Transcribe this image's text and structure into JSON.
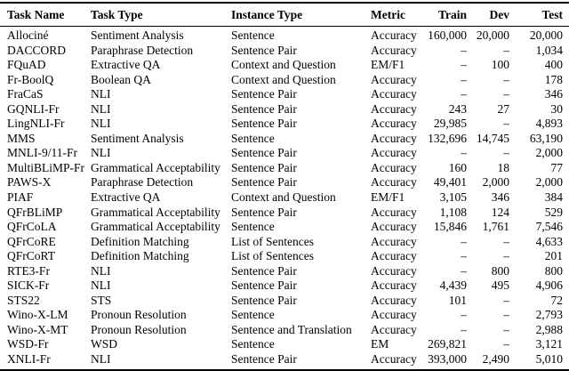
{
  "table": {
    "columns": [
      {
        "label": "Task Name",
        "align": "left",
        "key": "task-name"
      },
      {
        "label": "Task Type",
        "align": "left",
        "key": "task-type"
      },
      {
        "label": "Instance Type",
        "align": "left",
        "key": "instance-type"
      },
      {
        "label": "Metric",
        "align": "left",
        "key": "metric"
      },
      {
        "label": "Train",
        "align": "right",
        "key": "train"
      },
      {
        "label": "Dev",
        "align": "right",
        "key": "dev"
      },
      {
        "label": "Test",
        "align": "right",
        "key": "test"
      }
    ],
    "rows": [
      [
        "Allociné",
        "Sentiment Analysis",
        "Sentence",
        "Accuracy",
        "160,000",
        "20,000",
        "20,000"
      ],
      [
        "DACCORD",
        "Paraphrase Detection",
        "Sentence Pair",
        "Accuracy",
        "–",
        "–",
        "1,034"
      ],
      [
        "FQuAD",
        "Extractive QA",
        "Context and Question",
        "EM/F1",
        "–",
        "100",
        "400"
      ],
      [
        "Fr-BoolQ",
        "Boolean QA",
        "Context and Question",
        "Accuracy",
        "–",
        "–",
        "178"
      ],
      [
        "FraCaS",
        "NLI",
        "Sentence Pair",
        "Accuracy",
        "–",
        "–",
        "346"
      ],
      [
        "GQNLI-Fr",
        "NLI",
        "Sentence Pair",
        "Accuracy",
        "243",
        "27",
        "30"
      ],
      [
        "LingNLI-Fr",
        "NLI",
        "Sentence Pair",
        "Accuracy",
        "29,985",
        "–",
        "4,893"
      ],
      [
        "MMS",
        "Sentiment Analysis",
        "Sentence",
        "Accuracy",
        "132,696",
        "14,745",
        "63,190"
      ],
      [
        "MNLI-9/11-Fr",
        "NLI",
        "Sentence Pair",
        "Accuracy",
        "–",
        "–",
        "2,000"
      ],
      [
        "MultiBLiMP-Fr",
        "Grammatical Acceptability",
        "Sentence Pair",
        "Accuracy",
        "160",
        "18",
        "77"
      ],
      [
        "PAWS-X",
        "Paraphrase Detection",
        "Sentence Pair",
        "Accuracy",
        "49,401",
        "2,000",
        "2,000"
      ],
      [
        "PIAF",
        "Extractive QA",
        "Context and Question",
        "EM/F1",
        "3,105",
        "346",
        "384"
      ],
      [
        "QFrBLiMP",
        "Grammatical Acceptability",
        "Sentence Pair",
        "Accuracy",
        "1,108",
        "124",
        "529"
      ],
      [
        "QFrCoLA",
        "Grammatical Acceptability",
        "Sentence",
        "Accuracy",
        "15,846",
        "1,761",
        "7,546"
      ],
      [
        "QFrCoRE",
        "Definition Matching",
        "List of Sentences",
        "Accuracy",
        "–",
        "–",
        "4,633"
      ],
      [
        "QFrCoRT",
        "Definition Matching",
        "List of Sentences",
        "Accuracy",
        "–",
        "–",
        "201"
      ],
      [
        "RTE3-Fr",
        "NLI",
        "Sentence Pair",
        "Accuracy",
        "–",
        "800",
        "800"
      ],
      [
        "SICK-Fr",
        "NLI",
        "Sentence Pair",
        "Accuracy",
        "4,439",
        "495",
        "4,906"
      ],
      [
        "STS22",
        "STS",
        "Sentence Pair",
        "Accuracy",
        "101",
        "–",
        "72"
      ],
      [
        "Wino-X-LM",
        "Pronoun Resolution",
        "Sentence",
        "Accuracy",
        "–",
        "–",
        "2,793"
      ],
      [
        "Wino-X-MT",
        "Pronoun Resolution",
        "Sentence and Translation",
        "Accuracy",
        "–",
        "–",
        "2,988"
      ],
      [
        "WSD-Fr",
        "WSD",
        "Sentence",
        "EM",
        "269,821",
        "–",
        "3,121"
      ],
      [
        "XNLI-Fr",
        "NLI",
        "Sentence Pair",
        "Accuracy",
        "393,000",
        "2,490",
        "5,010"
      ]
    ]
  }
}
